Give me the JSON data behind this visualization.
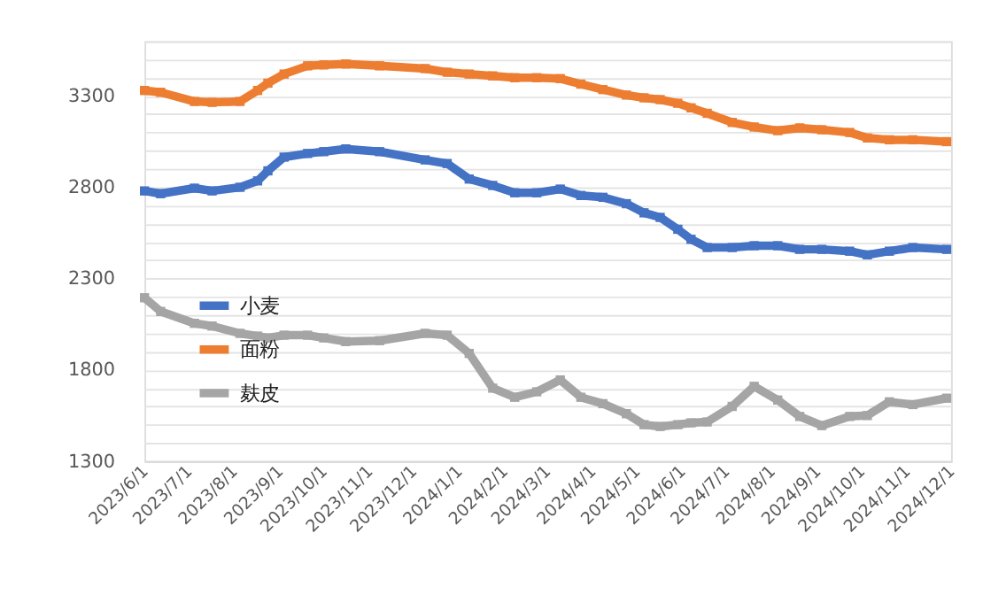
{
  "chart_data": {
    "type": "line",
    "x": [
      "2023-06-01",
      "2023-06-12",
      "2023-07-05",
      "2023-07-17",
      "2023-08-05",
      "2023-08-17",
      "2023-08-24",
      "2023-09-04",
      "2023-09-20",
      "2023-10-01",
      "2023-10-16",
      "2023-11-08",
      "2023-12-09",
      "2023-12-24",
      "2024-01-08",
      "2024-01-24",
      "2024-02-08",
      "2024-02-23",
      "2024-03-10",
      "2024-03-24",
      "2024-04-08",
      "2024-04-24",
      "2024-05-06",
      "2024-05-17",
      "2024-05-29",
      "2024-06-07",
      "2024-06-18",
      "2024-07-05",
      "2024-07-20",
      "2024-08-05",
      "2024-08-20",
      "2024-09-04",
      "2024-09-23",
      "2024-10-05",
      "2024-10-20",
      "2024-11-05",
      "2024-11-28"
    ],
    "series": [
      {
        "name": "小麦",
        "color": "#4472c4",
        "values": [
          2780,
          2765,
          2795,
          2780,
          2800,
          2835,
          2890,
          2965,
          2985,
          2995,
          3010,
          2995,
          2950,
          2930,
          2845,
          2810,
          2770,
          2770,
          2790,
          2755,
          2745,
          2710,
          2660,
          2635,
          2570,
          2515,
          2470,
          2470,
          2480,
          2480,
          2460,
          2460,
          2450,
          2430,
          2450,
          2470,
          2460
        ]
      },
      {
        "name": "面粉",
        "color": "#ed7d31",
        "values": [
          3330,
          3320,
          3270,
          3265,
          3270,
          3330,
          3370,
          3420,
          3465,
          3470,
          3475,
          3465,
          3450,
          3430,
          3420,
          3410,
          3400,
          3400,
          3395,
          3365,
          3335,
          3305,
          3290,
          3280,
          3260,
          3235,
          3205,
          3155,
          3130,
          3110,
          3125,
          3115,
          3100,
          3070,
          3060,
          3060,
          3050
        ]
      },
      {
        "name": "麸皮",
        "color": "#a5a5a5",
        "values": [
          2195,
          2120,
          2055,
          2040,
          2000,
          1985,
          1975,
          1990,
          1990,
          1975,
          1955,
          1960,
          2000,
          1990,
          1890,
          1700,
          1650,
          1680,
          1745,
          1650,
          1615,
          1560,
          1500,
          1490,
          1500,
          1510,
          1515,
          1600,
          1710,
          1635,
          1545,
          1495,
          1545,
          1550,
          1625,
          1610,
          1645
        ]
      }
    ],
    "xlim": [
      "2023-06-01",
      "2024-12-01"
    ],
    "xticks": [
      {
        "value": "2023-06-01",
        "label": "2023/6/1"
      },
      {
        "value": "2023-07-01",
        "label": "2023/7/1"
      },
      {
        "value": "2023-08-01",
        "label": "2023/8/1"
      },
      {
        "value": "2023-09-01",
        "label": "2023/9/1"
      },
      {
        "value": "2023-10-01",
        "label": "2023/10/1"
      },
      {
        "value": "2023-11-01",
        "label": "2023/11/1"
      },
      {
        "value": "2023-12-01",
        "label": "2023/12/1"
      },
      {
        "value": "2024-01-01",
        "label": "2024/1/1"
      },
      {
        "value": "2024-02-01",
        "label": "2024/2/1"
      },
      {
        "value": "2024-03-01",
        "label": "2024/3/1"
      },
      {
        "value": "2024-04-01",
        "label": "2024/4/1"
      },
      {
        "value": "2024-05-01",
        "label": "2024/5/1"
      },
      {
        "value": "2024-06-01",
        "label": "2024/6/1"
      },
      {
        "value": "2024-07-01",
        "label": "2024/7/1"
      },
      {
        "value": "2024-08-01",
        "label": "2024/8/1"
      },
      {
        "value": "2024-09-01",
        "label": "2024/9/1"
      },
      {
        "value": "2024-10-01",
        "label": "2024/10/1"
      },
      {
        "value": "2024-11-01",
        "label": "2024/11/1"
      },
      {
        "value": "2024-12-01",
        "label": "2024/12/1"
      }
    ],
    "ylim": [
      1300,
      3600
    ],
    "yticks": [
      1300,
      {
        "value": 1400,
        "label": null
      },
      {
        "value": 1500,
        "label": null
      },
      {
        "value": 1600,
        "label": null
      },
      {
        "value": 1700,
        "label": null
      },
      1800,
      {
        "value": 1900,
        "label": null
      },
      {
        "value": 2000,
        "label": null
      },
      {
        "value": 2100,
        "label": null
      },
      {
        "value": 2200,
        "label": null
      },
      2300,
      {
        "value": 2400,
        "label": null
      },
      {
        "value": 2500,
        "label": null
      },
      {
        "value": 2600,
        "label": null
      },
      {
        "value": 2700,
        "label": null
      },
      2800,
      {
        "value": 2900,
        "label": null
      },
      {
        "value": 3000,
        "label": null
      },
      {
        "value": 3100,
        "label": null
      },
      {
        "value": 3200,
        "label": null
      },
      3300,
      {
        "value": 3400,
        "label": null
      },
      {
        "value": 3500,
        "label": null
      },
      {
        "value": 3600,
        "label": null
      }
    ],
    "grid": "y",
    "legend": "bottom left",
    "marker": "square",
    "line_style": "solid"
  }
}
